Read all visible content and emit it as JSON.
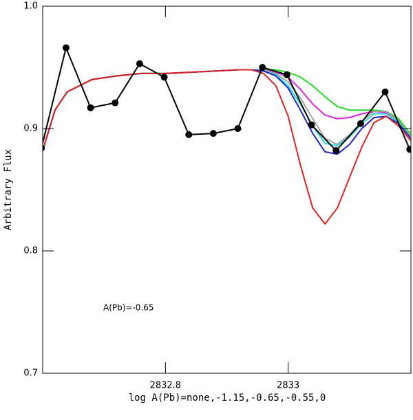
{
  "chart_data": {
    "type": "line",
    "xlabel": "log A(Pb)=none,-1.15,-0.65,-0.55,0",
    "ylabel": "Arbitrary Flux",
    "annotation": "A(Pb)=-0.65",
    "xlim": [
      2832.6,
      2833.2
    ],
    "ylim": [
      0.7,
      1.0
    ],
    "xticks": [
      2832.8,
      2833
    ],
    "yticks": [
      0.7,
      0.8,
      0.9,
      {
        "value": 1,
        "label": "1.0"
      }
    ],
    "series": [
      {
        "color": "#22dd22",
        "x": [
          2832.6,
          2832.62,
          2832.64,
          2832.68,
          2832.72,
          2832.76,
          2832.8,
          2832.84,
          2832.88,
          2832.92,
          2832.94,
          2832.96,
          2832.98,
          2833.0,
          2833.02,
          2833.04,
          2833.06,
          2833.08,
          2833.1,
          2833.12,
          2833.14,
          2833.16,
          2833.18,
          2833.2
        ],
        "values": [
          0.882,
          0.915,
          0.93,
          0.94,
          0.943,
          0.945,
          0.945,
          0.946,
          0.947,
          0.948,
          0.948,
          0.948,
          0.948,
          0.946,
          0.942,
          0.935,
          0.926,
          0.918,
          0.915,
          0.915,
          0.915,
          0.914,
          0.908,
          0.895
        ]
      },
      {
        "color": "#dd22dd",
        "x": [
          2832.6,
          2832.62,
          2832.64,
          2832.68,
          2832.72,
          2832.76,
          2832.8,
          2832.84,
          2832.88,
          2832.92,
          2832.94,
          2832.96,
          2832.98,
          2833.0,
          2833.02,
          2833.04,
          2833.06,
          2833.08,
          2833.1,
          2833.12,
          2833.14,
          2833.16,
          2833.18,
          2833.2
        ],
        "values": [
          0.882,
          0.915,
          0.93,
          0.94,
          0.943,
          0.945,
          0.945,
          0.946,
          0.947,
          0.948,
          0.948,
          0.948,
          0.946,
          0.942,
          0.932,
          0.92,
          0.911,
          0.908,
          0.909,
          0.912,
          0.914,
          0.913,
          0.906,
          0.893
        ]
      },
      {
        "color": "#a0a0a0",
        "x": [
          2832.6,
          2832.62,
          2832.64,
          2832.68,
          2832.72,
          2832.76,
          2832.8,
          2832.84,
          2832.88,
          2832.92,
          2832.94,
          2832.96,
          2832.98,
          2833.0,
          2833.02,
          2833.04,
          2833.06,
          2833.08,
          2833.1,
          2833.12,
          2833.14,
          2833.16,
          2833.18,
          2833.2
        ],
        "values": [
          0.882,
          0.915,
          0.93,
          0.94,
          0.943,
          0.945,
          0.945,
          0.946,
          0.947,
          0.948,
          0.948,
          0.948,
          0.945,
          0.938,
          0.925,
          0.908,
          0.892,
          0.887,
          0.895,
          0.906,
          0.914,
          0.914,
          0.906,
          0.893
        ]
      },
      {
        "color": "#22dddd",
        "x": [
          2832.6,
          2832.62,
          2832.64,
          2832.68,
          2832.72,
          2832.76,
          2832.8,
          2832.84,
          2832.88,
          2832.92,
          2832.94,
          2832.96,
          2832.98,
          2833.0,
          2833.02,
          2833.04,
          2833.06,
          2833.08,
          2833.1,
          2833.12,
          2833.14,
          2833.16,
          2833.18,
          2833.2
        ],
        "values": [
          0.882,
          0.915,
          0.93,
          0.94,
          0.943,
          0.945,
          0.945,
          0.946,
          0.947,
          0.948,
          0.948,
          0.947,
          0.944,
          0.935,
          0.92,
          0.902,
          0.888,
          0.886,
          0.893,
          0.904,
          0.912,
          0.912,
          0.905,
          0.892
        ]
      },
      {
        "color": "#2222cc",
        "x": [
          2832.6,
          2832.62,
          2832.64,
          2832.68,
          2832.72,
          2832.76,
          2832.8,
          2832.84,
          2832.88,
          2832.92,
          2832.94,
          2832.96,
          2832.98,
          2833.0,
          2833.02,
          2833.04,
          2833.06,
          2833.08,
          2833.1,
          2833.12,
          2833.14,
          2833.16,
          2833.18,
          2833.2
        ],
        "values": [
          0.882,
          0.915,
          0.93,
          0.94,
          0.943,
          0.945,
          0.945,
          0.946,
          0.947,
          0.948,
          0.948,
          0.947,
          0.943,
          0.933,
          0.915,
          0.896,
          0.881,
          0.879,
          0.887,
          0.9,
          0.909,
          0.91,
          0.904,
          0.892
        ]
      },
      {
        "color": "#dd2222",
        "x": [
          2832.6,
          2832.62,
          2832.64,
          2832.68,
          2832.72,
          2832.76,
          2832.8,
          2832.84,
          2832.88,
          2832.92,
          2832.94,
          2832.96,
          2832.98,
          2833.0,
          2833.02,
          2833.04,
          2833.06,
          2833.08,
          2833.1,
          2833.12,
          2833.14,
          2833.16,
          2833.18,
          2833.2
        ],
        "values": [
          0.882,
          0.915,
          0.93,
          0.94,
          0.943,
          0.945,
          0.945,
          0.946,
          0.947,
          0.948,
          0.948,
          0.945,
          0.935,
          0.91,
          0.87,
          0.835,
          0.822,
          0.835,
          0.86,
          0.885,
          0.905,
          0.91,
          0.902,
          0.89
        ]
      },
      {
        "color": "#000000",
        "marker": true,
        "x": [
          2832.598,
          2832.638,
          2832.678,
          2832.718,
          2832.758,
          2832.798,
          2832.838,
          2832.878,
          2832.918,
          2832.958,
          2832.998,
          2833.038,
          2833.078,
          2833.118,
          2833.158,
          2833.198
        ],
        "values": [
          0.884,
          0.966,
          0.917,
          0.921,
          0.953,
          0.942,
          0.895,
          0.896,
          0.9,
          0.95,
          0.944,
          0.903,
          0.882,
          0.904,
          0.93,
          0.883
        ]
      }
    ]
  }
}
